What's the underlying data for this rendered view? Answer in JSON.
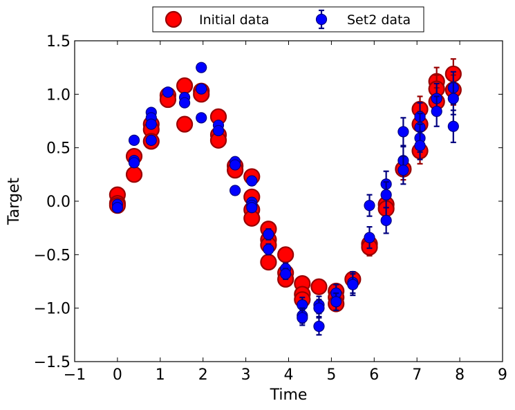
{
  "chart_data": {
    "type": "scatter",
    "title": "",
    "xlabel": "Time",
    "ylabel": "Target",
    "xlim": [
      -1,
      9
    ],
    "ylim": [
      -1.5,
      1.5
    ],
    "xticks": [
      -1,
      0,
      1,
      2,
      3,
      4,
      5,
      6,
      7,
      8,
      9
    ],
    "yticks": [
      -1.5,
      -1.0,
      -0.5,
      0.0,
      0.5,
      1.0,
      1.5
    ],
    "xtick_labels": [
      "−1",
      "0",
      "1",
      "2",
      "3",
      "4",
      "5",
      "6",
      "7",
      "8",
      "9"
    ],
    "ytick_labels": [
      "−1.5",
      "−1.0",
      "−0.5",
      "0.0",
      "0.5",
      "1.0",
      "1.5"
    ],
    "grid": false,
    "legend_position": "top-center, above plot, 2 columns",
    "series": [
      {
        "name": "Initial data",
        "color": "#ff0000",
        "edge_color": "#990000",
        "marker": "circle-large",
        "points": [
          {
            "x": 0.0,
            "y": 0.06,
            "err": 0.0
          },
          {
            "x": 0.0,
            "y": -0.02,
            "err": 0.0
          },
          {
            "x": 0.0,
            "y": -0.04,
            "err": 0.0
          },
          {
            "x": 0.39,
            "y": 0.42,
            "err": 0.0
          },
          {
            "x": 0.39,
            "y": 0.25,
            "err": 0.0
          },
          {
            "x": 0.79,
            "y": 0.72,
            "err": 0.0
          },
          {
            "x": 0.79,
            "y": 0.67,
            "err": 0.0
          },
          {
            "x": 0.79,
            "y": 0.56,
            "err": 0.0
          },
          {
            "x": 1.18,
            "y": 0.99,
            "err": 0.0
          },
          {
            "x": 1.18,
            "y": 0.95,
            "err": 0.0
          },
          {
            "x": 1.57,
            "y": 1.08,
            "err": 0.0
          },
          {
            "x": 1.57,
            "y": 0.72,
            "err": 0.0
          },
          {
            "x": 1.96,
            "y": 1.03,
            "err": 0.0
          },
          {
            "x": 1.96,
            "y": 1.0,
            "err": 0.0
          },
          {
            "x": 2.36,
            "y": 0.79,
            "err": 0.0
          },
          {
            "x": 2.36,
            "y": 0.62,
            "err": 0.0
          },
          {
            "x": 2.36,
            "y": 0.57,
            "err": 0.0
          },
          {
            "x": 2.75,
            "y": 0.33,
            "err": 0.0
          },
          {
            "x": 2.75,
            "y": 0.29,
            "err": 0.0
          },
          {
            "x": 3.14,
            "y": 0.23,
            "err": 0.0
          },
          {
            "x": 3.14,
            "y": 0.04,
            "err": 0.0
          },
          {
            "x": 3.14,
            "y": -0.08,
            "err": 0.0
          },
          {
            "x": 3.14,
            "y": -0.16,
            "err": 0.0
          },
          {
            "x": 3.53,
            "y": -0.26,
            "err": 0.04
          },
          {
            "x": 3.53,
            "y": -0.36,
            "err": 0.04
          },
          {
            "x": 3.53,
            "y": -0.41,
            "err": 0.04
          },
          {
            "x": 3.53,
            "y": -0.57,
            "err": 0.04
          },
          {
            "x": 3.93,
            "y": -0.5,
            "err": 0.05
          },
          {
            "x": 3.93,
            "y": -0.67,
            "err": 0.05
          },
          {
            "x": 3.93,
            "y": -0.73,
            "err": 0.05
          },
          {
            "x": 4.32,
            "y": -0.77,
            "err": 0.05
          },
          {
            "x": 4.32,
            "y": -0.87,
            "err": 0.05
          },
          {
            "x": 4.32,
            "y": -0.92,
            "err": 0.05
          },
          {
            "x": 4.71,
            "y": -0.8,
            "err": 0.05
          },
          {
            "x": 5.11,
            "y": -0.84,
            "err": 0.05
          },
          {
            "x": 5.11,
            "y": -0.9,
            "err": 0.05
          },
          {
            "x": 5.11,
            "y": -0.96,
            "err": 0.05
          },
          {
            "x": 5.5,
            "y": -0.73,
            "err": 0.07
          },
          {
            "x": 5.89,
            "y": -0.4,
            "err": 0.08
          },
          {
            "x": 5.89,
            "y": -0.43,
            "err": 0.08
          },
          {
            "x": 6.28,
            "y": -0.03,
            "err": 0.08
          },
          {
            "x": 6.28,
            "y": -0.07,
            "err": 0.08
          },
          {
            "x": 6.68,
            "y": 0.3,
            "err": 0.1
          },
          {
            "x": 7.07,
            "y": 0.86,
            "err": 0.12
          },
          {
            "x": 7.07,
            "y": 0.72,
            "err": 0.12
          },
          {
            "x": 7.07,
            "y": 0.47,
            "err": 0.12
          },
          {
            "x": 7.46,
            "y": 1.12,
            "err": 0.13
          },
          {
            "x": 7.46,
            "y": 1.05,
            "err": 0.13
          },
          {
            "x": 7.46,
            "y": 0.93,
            "err": 0.13
          },
          {
            "x": 7.85,
            "y": 1.19,
            "err": 0.14
          },
          {
            "x": 7.85,
            "y": 1.04,
            "err": 0.14
          }
        ]
      },
      {
        "name": "Set2 data",
        "color": "#0000ff",
        "edge_color": "#000080",
        "marker": "circle-small",
        "points": [
          {
            "x": 0.0,
            "y": -0.03,
            "err": 0.0
          },
          {
            "x": 0.0,
            "y": -0.06,
            "err": 0.0
          },
          {
            "x": 0.39,
            "y": 0.57,
            "err": 0.0
          },
          {
            "x": 0.39,
            "y": 0.38,
            "err": 0.0
          },
          {
            "x": 0.39,
            "y": 0.36,
            "err": 0.0
          },
          {
            "x": 0.79,
            "y": 0.83,
            "err": 0.0
          },
          {
            "x": 0.79,
            "y": 0.78,
            "err": 0.0
          },
          {
            "x": 0.79,
            "y": 0.72,
            "err": 0.0
          },
          {
            "x": 0.79,
            "y": 0.57,
            "err": 0.0
          },
          {
            "x": 1.18,
            "y": 1.02,
            "err": 0.0
          },
          {
            "x": 1.57,
            "y": 0.97,
            "err": 0.0
          },
          {
            "x": 1.57,
            "y": 0.92,
            "err": 0.0
          },
          {
            "x": 1.96,
            "y": 1.25,
            "err": 0.0
          },
          {
            "x": 1.96,
            "y": 1.05,
            "err": 0.0
          },
          {
            "x": 1.96,
            "y": 0.78,
            "err": 0.0
          },
          {
            "x": 2.36,
            "y": 0.71,
            "err": 0.03
          },
          {
            "x": 2.36,
            "y": 0.66,
            "err": 0.03
          },
          {
            "x": 2.75,
            "y": 0.37,
            "err": 0.04
          },
          {
            "x": 2.75,
            "y": 0.34,
            "err": 0.04
          },
          {
            "x": 2.75,
            "y": 0.1,
            "err": 0.04
          },
          {
            "x": 3.14,
            "y": 0.19,
            "err": 0.04
          },
          {
            "x": 3.14,
            "y": -0.01,
            "err": 0.04
          },
          {
            "x": 3.14,
            "y": -0.04,
            "err": 0.04
          },
          {
            "x": 3.14,
            "y": -0.06,
            "err": 0.04
          },
          {
            "x": 3.53,
            "y": -0.31,
            "err": 0.05
          },
          {
            "x": 3.53,
            "y": -0.45,
            "err": 0.05
          },
          {
            "x": 3.93,
            "y": -0.63,
            "err": 0.05
          },
          {
            "x": 3.93,
            "y": -0.68,
            "err": 0.05
          },
          {
            "x": 4.32,
            "y": -0.97,
            "err": 0.07
          },
          {
            "x": 4.32,
            "y": -1.07,
            "err": 0.07
          },
          {
            "x": 4.32,
            "y": -1.09,
            "err": 0.07
          },
          {
            "x": 4.71,
            "y": -0.97,
            "err": 0.08
          },
          {
            "x": 4.71,
            "y": -1.0,
            "err": 0.08
          },
          {
            "x": 4.71,
            "y": -1.17,
            "err": 0.08
          },
          {
            "x": 5.11,
            "y": -0.86,
            "err": 0.08
          },
          {
            "x": 5.11,
            "y": -0.94,
            "err": 0.08
          },
          {
            "x": 5.5,
            "y": -0.76,
            "err": 0.1
          },
          {
            "x": 5.5,
            "y": -0.78,
            "err": 0.1
          },
          {
            "x": 5.89,
            "y": -0.04,
            "err": 0.1
          },
          {
            "x": 5.89,
            "y": -0.34,
            "err": 0.1
          },
          {
            "x": 6.28,
            "y": 0.16,
            "err": 0.12
          },
          {
            "x": 6.28,
            "y": 0.06,
            "err": 0.12
          },
          {
            "x": 6.28,
            "y": -0.18,
            "err": 0.12
          },
          {
            "x": 6.68,
            "y": 0.65,
            "err": 0.13
          },
          {
            "x": 6.68,
            "y": 0.38,
            "err": 0.13
          },
          {
            "x": 6.68,
            "y": 0.29,
            "err": 0.13
          },
          {
            "x": 7.07,
            "y": 0.79,
            "err": 0.13
          },
          {
            "x": 7.07,
            "y": 0.69,
            "err": 0.13
          },
          {
            "x": 7.07,
            "y": 0.59,
            "err": 0.13
          },
          {
            "x": 7.07,
            "y": 0.52,
            "err": 0.13
          },
          {
            "x": 7.46,
            "y": 0.96,
            "err": 0.14
          },
          {
            "x": 7.46,
            "y": 0.84,
            "err": 0.14
          },
          {
            "x": 7.85,
            "y": 1.06,
            "err": 0.15
          },
          {
            "x": 7.85,
            "y": 0.96,
            "err": 0.15
          },
          {
            "x": 7.85,
            "y": 0.7,
            "err": 0.15
          }
        ]
      }
    ]
  }
}
